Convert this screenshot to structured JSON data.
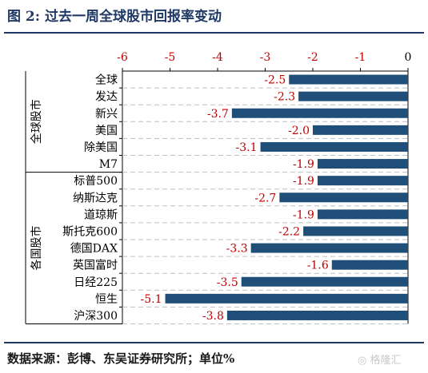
{
  "title": "图 2:  过去一周全球股市回报率变动",
  "source": "数据来源：彭博、东吴证券研究所；单位%",
  "watermark": "格隆汇",
  "colors": {
    "bar": "#1f4e79",
    "label": "#c00000",
    "tick": "#c00000",
    "title": "#1f3864"
  },
  "chart_data": {
    "type": "bar",
    "orientation": "horizontal",
    "xlim": [
      -6,
      0
    ],
    "xticks": [
      "-6",
      "-5",
      "-4",
      "-3",
      "-2",
      "-1",
      "0"
    ],
    "groups": [
      {
        "name": "全球股市",
        "categories": [
          "全球",
          "发达",
          "新兴",
          "美国",
          "除美国",
          "M7"
        ]
      },
      {
        "name": "各国股市",
        "categories": [
          "标普500",
          "纳斯达克",
          "道琼斯",
          "斯托克600",
          "德国DAX",
          "英国富时",
          "日经225",
          "恒生",
          "沪深300"
        ]
      }
    ],
    "categories": [
      "全球",
      "发达",
      "新兴",
      "美国",
      "除美国",
      "M7",
      "标普500",
      "纳斯达克",
      "道琼斯",
      "斯托克600",
      "德国DAX",
      "英国富时",
      "日经225",
      "恒生",
      "沪深300"
    ],
    "values": [
      -2.5,
      -2.3,
      -3.7,
      -2.0,
      -3.1,
      -1.9,
      -1.9,
      -2.7,
      -1.9,
      -2.2,
      -3.3,
      -1.6,
      -3.5,
      -5.1,
      -3.8
    ],
    "data_labels": [
      "-2.5",
      "-2.3",
      "-3.7",
      "-2.0",
      "-3.1",
      "-1.9",
      "-1.9",
      "-2.7",
      "-1.9",
      "-2.2",
      "-3.3",
      "-1.6",
      "-3.5",
      "-5.1",
      "-3.8"
    ],
    "grid": "dashed horizontal row guides",
    "legend": "none"
  }
}
